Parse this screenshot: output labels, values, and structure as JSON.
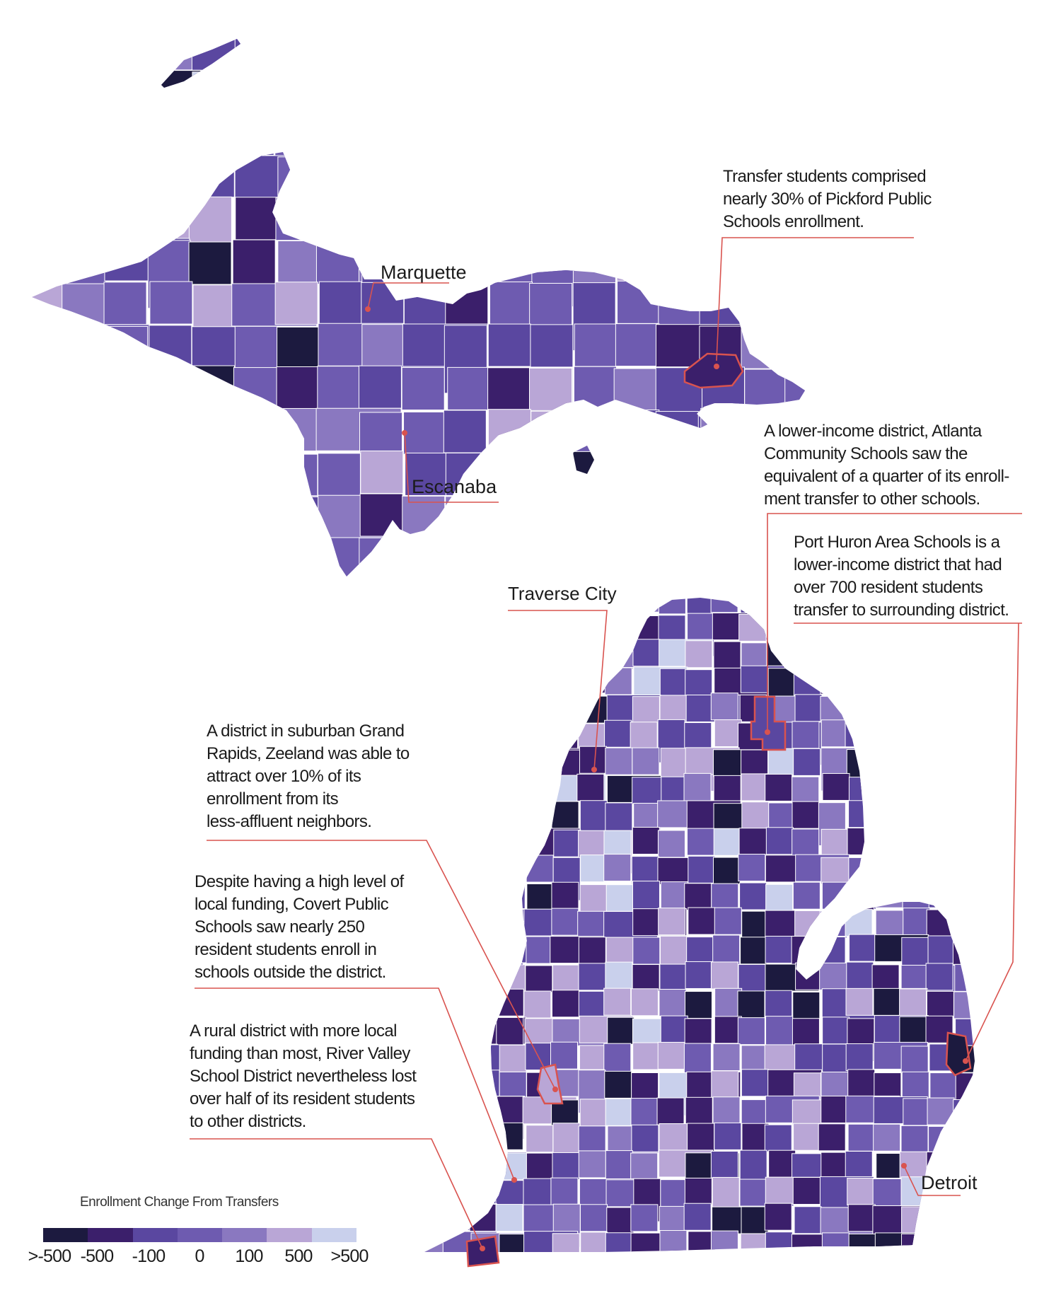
{
  "colors": {
    "bins": [
      "#1c1a3f",
      "#3b1f6b",
      "#5a47a0",
      "#6e5bb0",
      "#8a78c0",
      "#b9a6d6",
      "#c9d0ec"
    ],
    "callout_line": "#d9534f",
    "district_border": "#ffffff"
  },
  "cities": {
    "marquette": "Marquette",
    "escanaba": "Escanaba",
    "traverse_city": "Traverse City",
    "detroit": "Detroit"
  },
  "annotations": {
    "pickford": [
      "Transfer students comprised",
      "nearly 30% of Pickford Public",
      "Schools enrollment."
    ],
    "atlanta": [
      "A lower-income district, Atlanta",
      "Community Schools saw the",
      "equivalent of a quarter of its enroll-",
      "ment transfer to other schools."
    ],
    "port_huron": [
      "Port Huron Area Schools is a",
      "lower-income district that had",
      "over 700 resident students",
      "transfer to surrounding district."
    ],
    "zeeland": [
      "A district in suburban Grand",
      "Rapids, Zeeland was able to",
      "attract over 10% of its",
      "enrollment from its",
      "less-affluent neighbors."
    ],
    "covert": [
      "Despite having a high level of",
      "local funding, Covert Public",
      "Schools saw nearly 250",
      "resident students enroll in",
      "schools outside the district."
    ],
    "river_valley": [
      "A rural district with more local",
      "funding than most, River Valley",
      "School District nevertheless lost",
      "over half of its resident students",
      "to other districts."
    ]
  },
  "legend": {
    "title": "Enrollment Change From Transfers",
    "labels": [
      ">-500",
      "-500",
      "-100",
      "0",
      "100",
      "500",
      ">500"
    ]
  }
}
